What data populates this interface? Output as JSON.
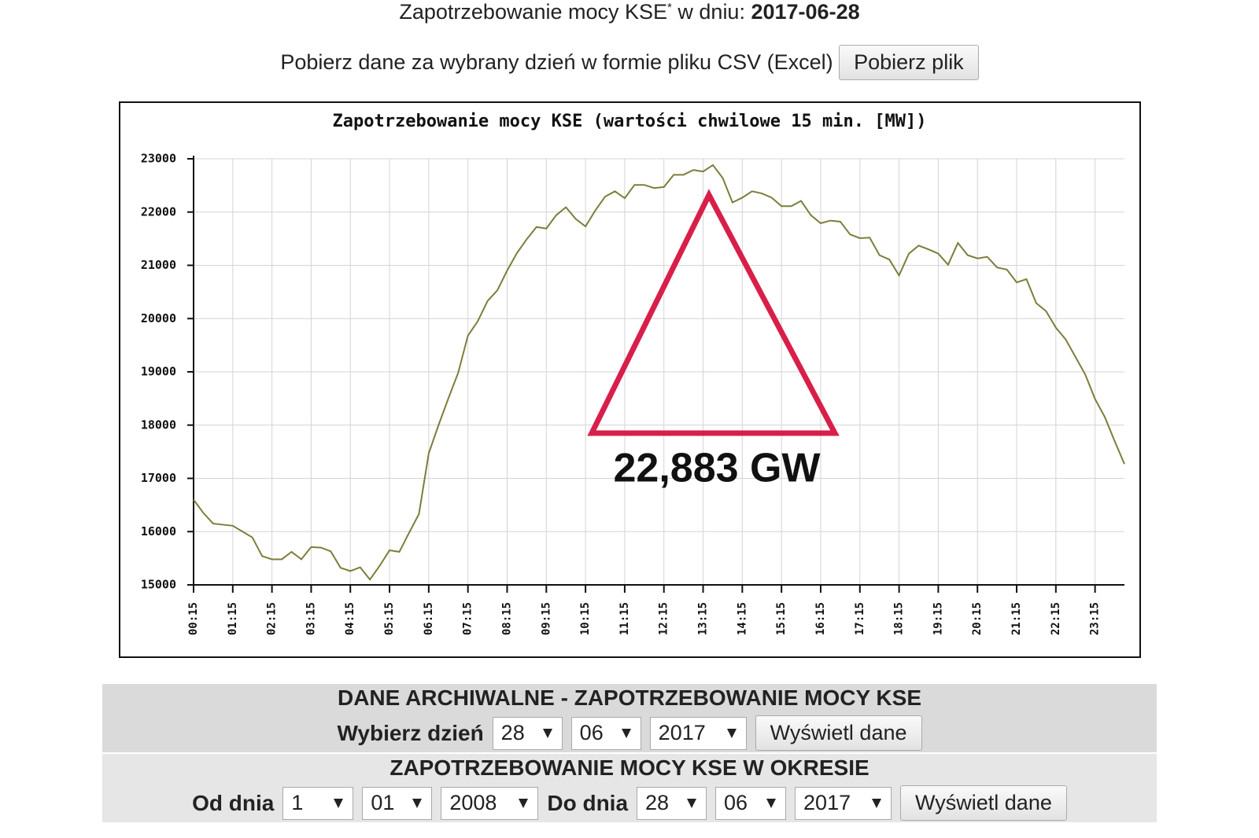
{
  "header": {
    "text": "Zapotrzebowanie mocy KSE",
    "footnote_mark": "*",
    "date_label": "w dniu:",
    "date": "2017-06-28"
  },
  "download": {
    "text": "Pobierz dane za wybrany dzień w formie pliku CSV (Excel)",
    "button": "Pobierz plik"
  },
  "chart_data": {
    "type": "line",
    "title": "Zapotrzebowanie mocy KSE (wartości chwilowe 15 min. [MW])",
    "categories": [
      "00:15",
      null,
      null,
      null,
      "01:15",
      null,
      null,
      null,
      "02:15",
      null,
      null,
      null,
      "03:15",
      null,
      null,
      null,
      "04:15",
      null,
      null,
      null,
      "05:15",
      null,
      null,
      null,
      "06:15",
      null,
      null,
      null,
      "07:15",
      null,
      null,
      null,
      "08:15",
      null,
      null,
      null,
      "09:15",
      null,
      null,
      null,
      "10:15",
      null,
      null,
      null,
      "11:15",
      null,
      null,
      null,
      "12:15",
      null,
      null,
      null,
      "13:15",
      null,
      null,
      null,
      "14:15",
      null,
      null,
      null,
      "15:15",
      null,
      null,
      null,
      "16:15",
      null,
      null,
      null,
      "17:15",
      null,
      null,
      null,
      "18:15",
      null,
      null,
      null,
      "19:15",
      null,
      null,
      null,
      "20:15",
      null,
      null,
      null,
      "21:15",
      null,
      null,
      null,
      "22:15",
      null,
      null,
      null,
      "23:15",
      null,
      null,
      null
    ],
    "values": [
      16600,
      16350,
      16150,
      16130,
      16110,
      16000,
      15890,
      15540,
      15480,
      15480,
      15620,
      15480,
      15710,
      15700,
      15630,
      15320,
      15260,
      15330,
      15100,
      15360,
      15650,
      15620,
      15980,
      16330,
      17470,
      18000,
      18500,
      18980,
      19680,
      19950,
      20330,
      20530,
      20900,
      21230,
      21490,
      21720,
      21690,
      21940,
      22090,
      21870,
      21730,
      22030,
      22290,
      22390,
      22260,
      22510,
      22510,
      22450,
      22470,
      22700,
      22700,
      22790,
      22760,
      22883,
      22640,
      22180,
      22270,
      22390,
      22350,
      22270,
      22110,
      22110,
      22210,
      21940,
      21790,
      21840,
      21820,
      21580,
      21510,
      21520,
      21190,
      21110,
      20810,
      21220,
      21370,
      21300,
      21220,
      21010,
      21420,
      21190,
      21130,
      21160,
      20960,
      20920,
      20680,
      20740,
      20290,
      20140,
      19830,
      19610,
      19280,
      18950,
      18490,
      18150,
      17700,
      17270
    ],
    "color": "#7d7d3c",
    "ylim": [
      15000,
      23000
    ],
    "yticks": [
      15000,
      16000,
      17000,
      18000,
      19000,
      20000,
      21000,
      22000,
      23000
    ],
    "grid": true,
    "annotation": {
      "text": "22,883 GW",
      "color": "#d81f4a"
    }
  },
  "archive": {
    "title": "DANE ARCHIWALNE - ZAPOTRZEBOWANIE MOCY KSE",
    "day_label": "Wybierz dzień",
    "day_selects": [
      "28",
      "06",
      "2017"
    ],
    "button": "Wyświetl dane"
  },
  "period": {
    "title": "ZAPOTRZEBOWANIE MOCY KSE W OKRESIE",
    "from_label": "Od dnia",
    "from_selects": [
      "1",
      "01",
      "2008"
    ],
    "to_label": "Do dnia",
    "to_selects": [
      "28",
      "06",
      "2017"
    ],
    "button": "Wyświetl dane"
  }
}
